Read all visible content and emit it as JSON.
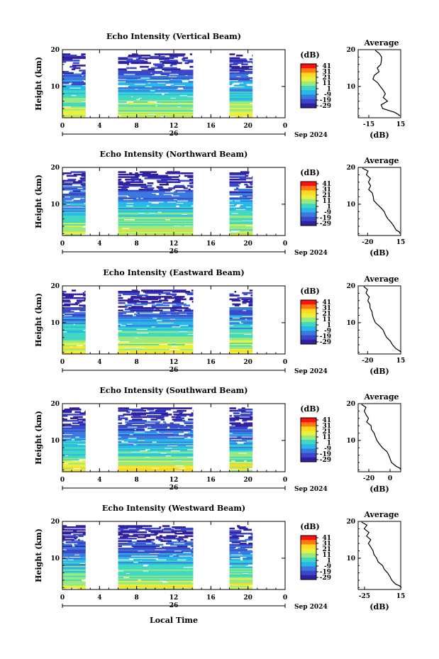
{
  "colorbar": {
    "unit_label": "(dB)",
    "tick_labels": [
      "41",
      "31",
      "21",
      "11",
      "1",
      "-9",
      "-19",
      "-29"
    ],
    "colors": [
      "#ff1010",
      "#ff7a10",
      "#ffd820",
      "#e8f040",
      "#9ae880",
      "#40d8c0",
      "#28b8e8",
      "#3a7ae0",
      "#3a48c8",
      "#3020a0"
    ]
  },
  "x_axis": {
    "tick_labels": [
      "0",
      "4",
      "8",
      "12",
      "16",
      "20",
      "0"
    ],
    "date_label": "26",
    "month_label": "Sep 2024",
    "xlabel": "Local Time"
  },
  "chart_data": [
    {
      "type": "heatmap",
      "title": "Echo Intensity (Vertical Beam)",
      "ylabel": "Height (km)",
      "xlim": [
        0,
        24
      ],
      "ylim": [
        1.5,
        20
      ],
      "yticks": [
        "20",
        "10"
      ],
      "data_blocks_hours": [
        [
          0,
          2.5
        ],
        [
          6,
          14.1
        ],
        [
          18,
          20.5
        ]
      ],
      "avg_title": "Average",
      "avg_xlabel": "(dB)",
      "avg_xticks": [
        "-15",
        "15"
      ],
      "avg_xlim": [
        -25,
        15
      ],
      "avg_yticks": [
        "20",
        "10"
      ],
      "avg_profile": [
        [
          -8,
          19.8
        ],
        [
          -5,
          19
        ],
        [
          -2,
          18
        ],
        [
          -4,
          17
        ],
        [
          -3,
          16
        ],
        [
          -7,
          15
        ],
        [
          -6,
          14
        ],
        [
          -9,
          13
        ],
        [
          -11,
          12
        ],
        [
          -7,
          11
        ],
        [
          -4,
          10
        ],
        [
          -2,
          9
        ],
        [
          0,
          8
        ],
        [
          -2,
          7
        ],
        [
          2,
          6
        ],
        [
          -4,
          5
        ],
        [
          -1,
          4
        ],
        [
          8,
          3
        ],
        [
          13,
          2.5
        ],
        [
          15,
          2
        ]
      ]
    },
    {
      "type": "heatmap",
      "title": "Echo Intensity (Northward Beam)",
      "ylabel": "Height (km)",
      "xlim": [
        0,
        24
      ],
      "ylim": [
        1.5,
        20
      ],
      "yticks": [
        "20",
        "10"
      ],
      "data_blocks_hours": [
        [
          0,
          2.5
        ],
        [
          6,
          14.1
        ],
        [
          18,
          20.5
        ]
      ],
      "avg_title": "Average",
      "avg_xlabel": "(dB)",
      "avg_xticks": [
        "-20",
        "15"
      ],
      "avg_xlim": [
        -30,
        15
      ],
      "avg_yticks": [
        "20",
        "10"
      ],
      "avg_profile": [
        [
          -25,
          19.8
        ],
        [
          -20,
          19
        ],
        [
          -22,
          18
        ],
        [
          -18,
          17
        ],
        [
          -19,
          16
        ],
        [
          -17,
          15
        ],
        [
          -18,
          14
        ],
        [
          -15,
          13
        ],
        [
          -14,
          12
        ],
        [
          -13,
          11
        ],
        [
          -10,
          10
        ],
        [
          -5,
          9
        ],
        [
          -3,
          8
        ],
        [
          0,
          7
        ],
        [
          2,
          6
        ],
        [
          5,
          5
        ],
        [
          7,
          4
        ],
        [
          10,
          3
        ],
        [
          14,
          2.5
        ],
        [
          15,
          2
        ]
      ]
    },
    {
      "type": "heatmap",
      "title": "Echo Intensity (Eastward Beam)",
      "ylabel": "Height (km)",
      "xlim": [
        0,
        24
      ],
      "ylim": [
        1.5,
        20
      ],
      "yticks": [
        "20",
        "10"
      ],
      "data_blocks_hours": [
        [
          0,
          2.5
        ],
        [
          6,
          14.1
        ],
        [
          18,
          20.5
        ]
      ],
      "avg_title": "Average",
      "avg_xlabel": "(dB)",
      "avg_xticks": [
        "-20",
        "15"
      ],
      "avg_xlim": [
        -30,
        15
      ],
      "avg_yticks": [
        "20",
        "10"
      ],
      "avg_profile": [
        [
          -25,
          19.8
        ],
        [
          -20,
          19
        ],
        [
          -22,
          18
        ],
        [
          -19,
          17
        ],
        [
          -20,
          16
        ],
        [
          -18,
          15
        ],
        [
          -17,
          14
        ],
        [
          -16,
          13
        ],
        [
          -15,
          12
        ],
        [
          -14,
          11
        ],
        [
          -12,
          10
        ],
        [
          -8,
          9
        ],
        [
          -4,
          8
        ],
        [
          -2,
          7
        ],
        [
          1,
          6
        ],
        [
          4,
          5
        ],
        [
          6,
          4
        ],
        [
          9,
          3
        ],
        [
          13,
          2.5
        ],
        [
          15,
          2
        ]
      ]
    },
    {
      "type": "heatmap",
      "title": "Echo Intensity (Southward Beam)",
      "ylabel": "Height (km)",
      "xlim": [
        0,
        24
      ],
      "ylim": [
        1.5,
        20
      ],
      "yticks": [
        "20",
        "10"
      ],
      "data_blocks_hours": [
        [
          0,
          2.5
        ],
        [
          6,
          14.1
        ],
        [
          18,
          20.5
        ]
      ],
      "avg_title": "Average",
      "avg_xlabel": "(dB)",
      "avg_xticks": [
        "-20",
        "0"
      ],
      "avg_xlim": [
        -30,
        10
      ],
      "avg_yticks": [
        "20",
        "10"
      ],
      "avg_profile": [
        [
          -26,
          19.8
        ],
        [
          -22,
          19
        ],
        [
          -25,
          18
        ],
        [
          -22,
          17
        ],
        [
          -20,
          16
        ],
        [
          -21,
          15
        ],
        [
          -18,
          14
        ],
        [
          -17,
          13
        ],
        [
          -15,
          12
        ],
        [
          -13,
          11
        ],
        [
          -12,
          10
        ],
        [
          -9,
          9
        ],
        [
          -7,
          8
        ],
        [
          -4,
          7
        ],
        [
          -2,
          6
        ],
        [
          0,
          5
        ],
        [
          2,
          4
        ],
        [
          5,
          3
        ],
        [
          8,
          2.5
        ],
        [
          10,
          2
        ]
      ]
    },
    {
      "type": "heatmap",
      "title": "Echo Intensity (Westward Beam)",
      "ylabel": "Height (km)",
      "xlim": [
        0,
        24
      ],
      "ylim": [
        1.5,
        20
      ],
      "yticks": [
        "20",
        "10"
      ],
      "data_blocks_hours": [
        [
          0,
          2.5
        ],
        [
          6,
          14.1
        ],
        [
          18,
          20.5
        ]
      ],
      "avg_title": "Average",
      "avg_xlabel": "(dB)",
      "avg_xticks": [
        "-25",
        "15"
      ],
      "avg_xlim": [
        -32,
        15
      ],
      "avg_yticks": [
        "20",
        "10"
      ],
      "avg_profile": [
        [
          -28,
          19.8
        ],
        [
          -22,
          19
        ],
        [
          -26,
          18
        ],
        [
          -20,
          17
        ],
        [
          -22,
          16
        ],
        [
          -19,
          15
        ],
        [
          -20,
          14
        ],
        [
          -17,
          13
        ],
        [
          -16,
          12
        ],
        [
          -14,
          11
        ],
        [
          -12,
          10
        ],
        [
          -9,
          9
        ],
        [
          -6,
          8
        ],
        [
          -3,
          7
        ],
        [
          0,
          6
        ],
        [
          3,
          5
        ],
        [
          6,
          4
        ],
        [
          9,
          3
        ],
        [
          13,
          2.5
        ],
        [
          15,
          2
        ]
      ]
    }
  ]
}
